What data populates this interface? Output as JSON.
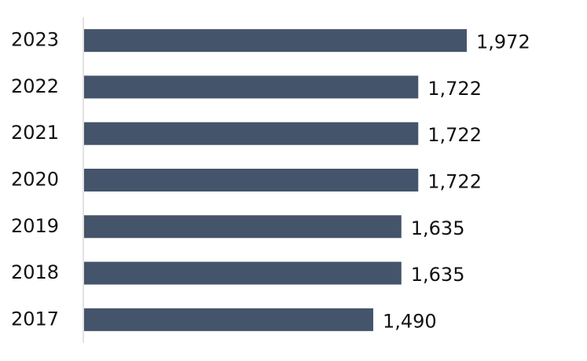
{
  "chart_data": {
    "type": "bar",
    "orientation": "horizontal",
    "categories": [
      "2023",
      "2022",
      "2021",
      "2020",
      "2019",
      "2018",
      "2017"
    ],
    "values": [
      1972,
      1722,
      1722,
      1722,
      1635,
      1635,
      1490
    ],
    "value_labels": [
      "1,972",
      "1,722",
      "1,722",
      "1,722",
      "1,635",
      "1,635",
      "1,490"
    ],
    "color": "#44546a"
  }
}
